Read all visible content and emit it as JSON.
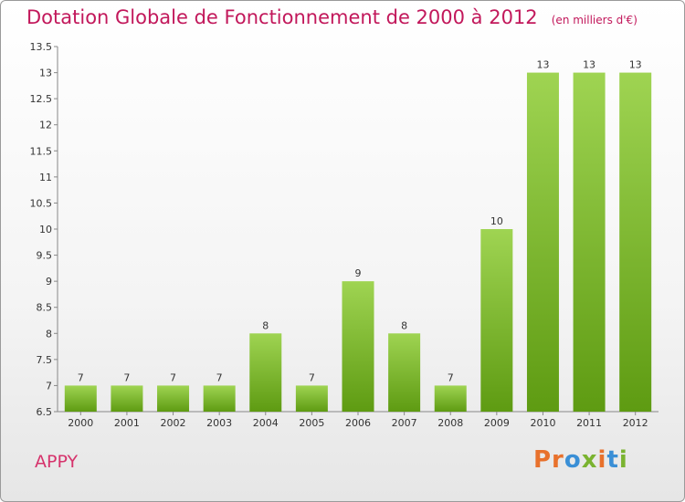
{
  "chart_data": {
    "type": "bar",
    "title": "Dotation Globale de Fonctionnement de 2000 à 2012",
    "unit_note": "(en milliers d'€)",
    "categories": [
      "2000",
      "2001",
      "2002",
      "2003",
      "2004",
      "2005",
      "2006",
      "2007",
      "2008",
      "2009",
      "2010",
      "2011",
      "2012"
    ],
    "values": [
      7,
      7,
      7,
      7,
      8,
      7,
      9,
      8,
      7,
      10,
      13,
      13,
      13
    ],
    "ylim": [
      6.5,
      13.5
    ],
    "yticks": [
      "6.5",
      "7",
      "7.5",
      "8",
      "8.5",
      "9",
      "9.5",
      "10",
      "10.5",
      "11",
      "11.5",
      "12",
      "12.5",
      "13",
      "13.5"
    ],
    "xlabel": "",
    "ylabel": "",
    "grid": false
  },
  "footer": {
    "town": "APPY",
    "logo": "Proxiti"
  },
  "colors": {
    "title": "#c2185b",
    "bar_top": "#9fd452",
    "bar_bottom": "#5e9b12"
  }
}
